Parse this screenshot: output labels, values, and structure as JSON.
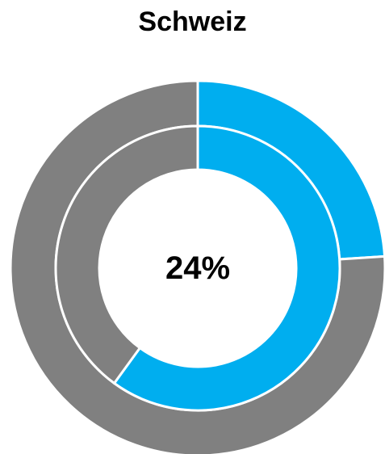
{
  "chart_data": {
    "type": "donut",
    "title": "Schweiz",
    "center_label": "24%",
    "rings": [
      {
        "ring": "outer",
        "slices": [
          {
            "value": 24,
            "color": "#00AEEF"
          },
          {
            "value": 76,
            "color": "#808080"
          }
        ]
      },
      {
        "ring": "inner",
        "slices": [
          {
            "value": 60,
            "color": "#00AEEF"
          },
          {
            "value": 40,
            "color": "#808080"
          }
        ]
      }
    ],
    "separator_color": "#FFFFFF"
  }
}
